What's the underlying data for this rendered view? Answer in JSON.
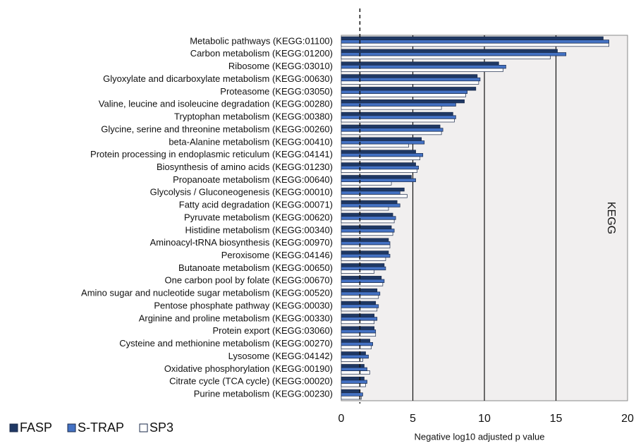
{
  "chart_data": {
    "type": "barh",
    "panel_label": "KEGG",
    "xlabel": "Negative log10  adjusted  p  value",
    "xlim": [
      0,
      20
    ],
    "xticks": [
      0,
      5,
      10,
      15,
      20
    ],
    "grid": true,
    "reference_line": 1.3,
    "legend": "bottom-left",
    "categories": [
      "Metabolic pathways (KEGG:01100)",
      "Carbon metabolism (KEGG:01200)",
      "Ribosome (KEGG:03010)",
      "Glyoxylate and dicarboxylate metabolism (KEGG:00630)",
      "Proteasome (KEGG:03050)",
      "Valine, leucine and isoleucine degradation (KEGG:00280)",
      "Tryptophan metabolism (KEGG:00380)",
      "Glycine, serine and threonine metabolism (KEGG:00260)",
      "beta-Alanine metabolism (KEGG:00410)",
      "Protein processing in endoplasmic reticulum (KEGG:04141)",
      "Biosynthesis of amino acids (KEGG:01230)",
      "Propanoate metabolism (KEGG:00640)",
      "Glycolysis / Gluconeogenesis (KEGG:00010)",
      "Fatty acid degradation (KEGG:00071)",
      "Pyruvate metabolism (KEGG:00620)",
      "Histidine metabolism (KEGG:00340)",
      "Aminoacyl-tRNA biosynthesis (KEGG:00970)",
      "Peroxisome (KEGG:04146)",
      "Butanoate metabolism (KEGG:00650)",
      "One carbon pool by folate (KEGG:00670)",
      "Amino sugar and nucleotide sugar metabolism (KEGG:00520)",
      "Pentose phosphate pathway (KEGG:00030)",
      "Arginine and proline metabolism (KEGG:00330)",
      "Protein export (KEGG:03060)",
      "Cysteine and methionine metabolism (KEGG:00270)",
      "Lysosome (KEGG:04142)",
      "Oxidative phosphorylation (KEGG:00190)",
      "Citrate cycle (TCA cycle) (KEGG:00020)",
      "Purine metabolism (KEGG:00230)"
    ],
    "series": [
      {
        "name": "FASP",
        "color": "#1f3864",
        "values": [
          18.3,
          15.1,
          11.0,
          9.5,
          9.4,
          8.6,
          7.8,
          6.9,
          5.6,
          5.2,
          5.2,
          4.9,
          4.4,
          3.9,
          3.6,
          3.5,
          3.3,
          3.3,
          3.0,
          2.8,
          2.5,
          2.4,
          2.3,
          2.3,
          2.0,
          1.7,
          1.6,
          1.6,
          1.3
        ]
      },
      {
        "name": "S-TRAP",
        "color": "#4472c4",
        "values": [
          18.7,
          15.7,
          11.5,
          9.7,
          8.8,
          8.0,
          8.0,
          7.1,
          5.8,
          5.7,
          5.4,
          5.2,
          4.1,
          4.1,
          3.8,
          3.7,
          3.4,
          3.4,
          3.1,
          3.0,
          2.7,
          2.6,
          2.5,
          2.4,
          2.2,
          1.9,
          1.8,
          1.8,
          1.5
        ]
      },
      {
        "name": "SP3",
        "color": "#ffffff",
        "values": [
          18.7,
          14.6,
          11.3,
          9.6,
          8.7,
          7.0,
          7.9,
          7.0,
          4.7,
          5.5,
          5.3,
          3.5,
          4.6,
          3.3,
          3.7,
          3.6,
          3.4,
          3.1,
          2.3,
          2.9,
          2.6,
          2.5,
          2.3,
          2.4,
          2.1,
          1.5,
          2.0,
          1.7,
          1.4
        ]
      }
    ]
  }
}
